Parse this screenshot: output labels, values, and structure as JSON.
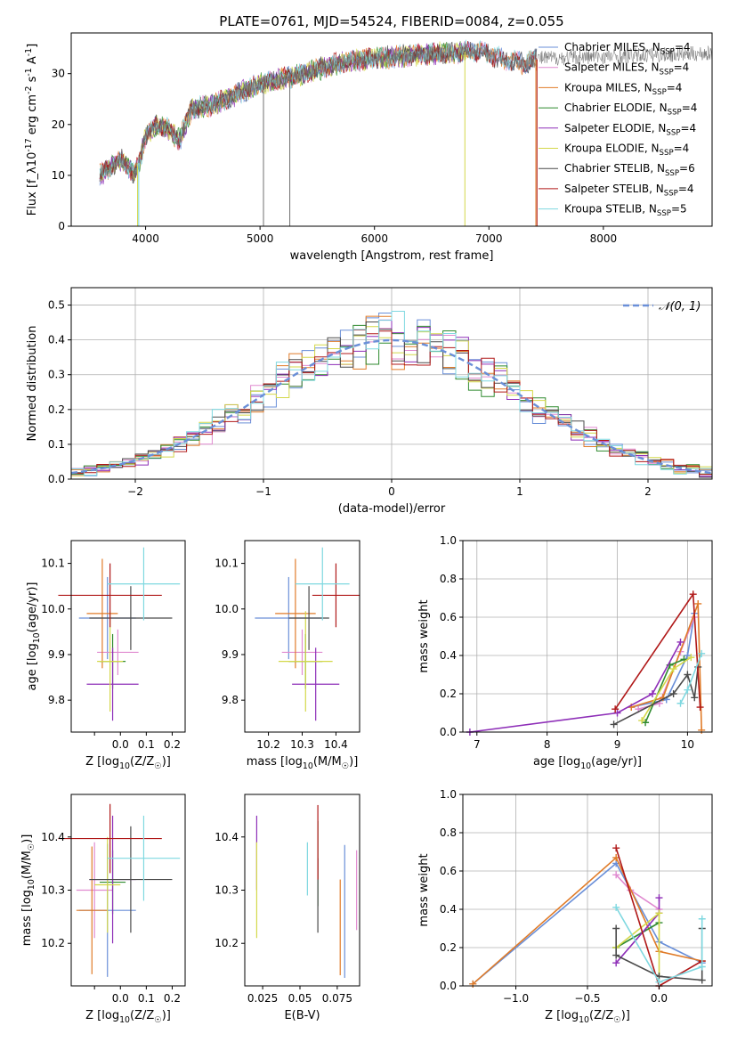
{
  "title": "PLATE=0761, MJD=54524, FIBERID=0084, z=0.055",
  "colors": {
    "Chabrier MILES": "#6a8fd8",
    "Salpeter MILES": "#e08ad0",
    "Kroupa MILES": "#e07b28",
    "Chabrier ELODIE": "#2f8a2f",
    "Salpeter ELODIE": "#8e2fb8",
    "Kroupa ELODIE": "#d4d84a",
    "Chabrier STELIB": "#4a4a4a",
    "Salpeter STELIB": "#b01818",
    "Kroupa STELIB": "#7fd8e0",
    "normal_curve": "#6a8fd8"
  },
  "chart_data": [
    {
      "id": "spectrum",
      "type": "line",
      "xlabel": "wavelength [Angstrom, rest frame]",
      "ylabel": "Flux [f_λ10^-17 erg cm^-2 s^-1 A^-1]",
      "xlim": [
        3350,
        8950
      ],
      "ylim": [
        0,
        38
      ],
      "xticks": [
        4000,
        5000,
        6000,
        7000,
        8000
      ],
      "yticks": [
        0,
        10,
        20,
        30
      ],
      "grid": false,
      "legend_position": "right",
      "series": [
        {
          "name": "Chabrier MILES, N_SSP=4"
        },
        {
          "name": "Salpeter MILES, N_SSP=4"
        },
        {
          "name": "Kroupa MILES, N_SSP=4"
        },
        {
          "name": "Chabrier ELODIE, N_SSP=4"
        },
        {
          "name": "Salpeter ELODIE, N_SSP=4"
        },
        {
          "name": "Kroupa ELODIE, N_SSP=4"
        },
        {
          "name": "Chabrier STELIB, N_SSP=6"
        },
        {
          "name": "Salpeter STELIB, N_SSP=4"
        },
        {
          "name": "Kroupa STELIB, N_SSP=5"
        }
      ],
      "envelope": {
        "x": [
          3600,
          3700,
          3800,
          3900,
          3950,
          4000,
          4100,
          4200,
          4300,
          4400,
          4600,
          4800,
          5000,
          5200,
          5400,
          5600,
          5800,
          6000,
          6300,
          6600,
          6900,
          7100,
          7300,
          7450
        ],
        "y": [
          10,
          12,
          13,
          10,
          13,
          18,
          20,
          19,
          17,
          23,
          24,
          26,
          28,
          29,
          30,
          31.5,
          32.5,
          33,
          33.5,
          34,
          34.5,
          33,
          32,
          33
        ]
      }
    },
    {
      "id": "residuals",
      "type": "step",
      "xlabel": "(data-model)/error",
      "ylabel": "Normed distribution",
      "xlim": [
        -2.5,
        2.5
      ],
      "ylim": [
        0,
        0.55
      ],
      "xticks": [
        -2,
        -1,
        0,
        1,
        2
      ],
      "yticks": [
        0.0,
        0.1,
        0.2,
        0.3,
        0.4,
        0.5
      ],
      "grid": true,
      "legend_position": "top-right",
      "normal_label": "N(0,1)",
      "bin_width": 0.1
    },
    {
      "id": "age_vs_Z",
      "type": "errorbar",
      "xlabel": "Z [log10(Z/Z☉)]",
      "ylabel": "age  [log10(age/yr)]",
      "xlim": [
        -0.19,
        0.25
      ],
      "ylim": [
        9.73,
        10.15
      ],
      "xticks": [
        -0.1,
        0.0,
        0.1,
        0.2
      ],
      "xtick_labels": [
        "",
        "0.0",
        "0.1",
        "0.2"
      ],
      "yticks": [
        9.8,
        9.9,
        10.0,
        10.1
      ],
      "points": [
        {
          "model": "Chabrier MILES",
          "x": -0.05,
          "xerr": 0.11,
          "y": 9.98,
          "yerr": 0.09
        },
        {
          "model": "Salpeter MILES",
          "x": -0.01,
          "xerr": 0.08,
          "y": 9.905,
          "yerr": 0.05
        },
        {
          "model": "Kroupa MILES",
          "x": -0.07,
          "xerr": 0.06,
          "y": 9.99,
          "yerr": 0.12
        },
        {
          "model": "Chabrier ELODIE",
          "x": -0.03,
          "xerr": 0.05,
          "y": 9.885,
          "yerr": 0.06
        },
        {
          "model": "Salpeter ELODIE",
          "x": -0.03,
          "xerr": 0.1,
          "y": 9.835,
          "yerr": 0.08
        },
        {
          "model": "Kroupa ELODIE",
          "x": -0.04,
          "xerr": 0.05,
          "y": 9.885,
          "yerr": 0.11
        },
        {
          "model": "Chabrier STELIB",
          "x": 0.04,
          "xerr": 0.16,
          "y": 9.98,
          "yerr": 0.07
        },
        {
          "model": "Salpeter STELIB",
          "x": -0.04,
          "xerr": 0.2,
          "y": 10.03,
          "yerr": 0.07
        },
        {
          "model": "Kroupa STELIB",
          "x": 0.09,
          "xerr": 0.14,
          "y": 10.055,
          "yerr": 0.08
        }
      ]
    },
    {
      "id": "age_vs_mass",
      "type": "errorbar",
      "xlabel": "mass [log10(M/M☉)]",
      "ylabel": "",
      "xlim": [
        10.13,
        10.47
      ],
      "ylim": [
        9.73,
        10.15
      ],
      "xticks": [
        10.2,
        10.3,
        10.4
      ],
      "yticks": [
        9.8,
        9.9,
        10.0,
        10.1
      ],
      "points": [
        {
          "model": "Chabrier MILES",
          "x": 10.26,
          "xerr": 0.1,
          "y": 9.98,
          "yerr": 0.09
        },
        {
          "model": "Salpeter MILES",
          "x": 10.3,
          "xerr": 0.06,
          "y": 9.905,
          "yerr": 0.05
        },
        {
          "model": "Kroupa MILES",
          "x": 10.28,
          "xerr": 0.06,
          "y": 9.99,
          "yerr": 0.12
        },
        {
          "model": "Chabrier ELODIE",
          "x": 10.31,
          "xerr": 0.05,
          "y": 9.885,
          "yerr": 0.06
        },
        {
          "model": "Salpeter ELODIE",
          "x": 10.34,
          "xerr": 0.07,
          "y": 9.835,
          "yerr": 0.08
        },
        {
          "model": "Kroupa ELODIE",
          "x": 10.31,
          "xerr": 0.08,
          "y": 9.885,
          "yerr": 0.11
        },
        {
          "model": "Chabrier STELIB",
          "x": 10.32,
          "xerr": 0.06,
          "y": 9.98,
          "yerr": 0.07
        },
        {
          "model": "Salpeter STELIB",
          "x": 10.4,
          "xerr": 0.07,
          "y": 10.03,
          "yerr": 0.07
        },
        {
          "model": "Kroupa STELIB",
          "x": 10.36,
          "xerr": 0.08,
          "y": 10.055,
          "yerr": 0.08
        }
      ]
    },
    {
      "id": "weight_vs_age",
      "type": "line",
      "xlabel": "age  [log10(age/yr)]",
      "ylabel": "mass weight",
      "xlim": [
        6.8,
        10.35
      ],
      "ylim": [
        0,
        1
      ],
      "xticks": [
        7,
        8,
        9,
        10
      ],
      "yticks": [
        0.0,
        0.2,
        0.4,
        0.6,
        0.8,
        1.0
      ],
      "grid": true,
      "series": [
        {
          "model": "Chabrier MILES",
          "x": [
            9.2,
            9.7,
            10.0,
            10.1
          ],
          "y": [
            0.13,
            0.17,
            0.4,
            0.62
          ]
        },
        {
          "model": "Salpeter MILES",
          "x": [
            9.3,
            9.6,
            9.9,
            10.1
          ],
          "y": [
            0.12,
            0.15,
            0.42,
            0.6
          ]
        },
        {
          "model": "Kroupa MILES",
          "x": [
            9.2,
            9.65,
            10.15,
            10.2
          ],
          "y": [
            0.13,
            0.18,
            0.67,
            0.01
          ]
        },
        {
          "model": "Chabrier ELODIE",
          "x": [
            9.4,
            9.75,
            9.95
          ],
          "y": [
            0.05,
            0.35,
            0.38
          ]
        },
        {
          "model": "Salpeter ELODIE",
          "x": [
            6.9,
            9.0,
            9.5,
            9.9
          ],
          "y": [
            0.0,
            0.1,
            0.2,
            0.47
          ]
        },
        {
          "model": "Kroupa ELODIE",
          "x": [
            9.35,
            9.8,
            10.05
          ],
          "y": [
            0.06,
            0.33,
            0.39
          ]
        },
        {
          "model": "Chabrier STELIB",
          "x": [
            8.95,
            9.8,
            10.0,
            10.1,
            10.15
          ],
          "y": [
            0.04,
            0.2,
            0.3,
            0.18,
            0.34
          ]
        },
        {
          "model": "Salpeter STELIB",
          "x": [
            8.97,
            10.08,
            10.18
          ],
          "y": [
            0.12,
            0.72,
            0.13
          ]
        },
        {
          "model": "Kroupa STELIB",
          "x": [
            9.9,
            10.0,
            10.2
          ],
          "y": [
            0.15,
            0.22,
            0.41
          ]
        }
      ]
    },
    {
      "id": "mass_vs_Z",
      "type": "errorbar",
      "xlabel": "Z [log10(Z/Z☉)]",
      "ylabel": "mass [log10(M/M☉)]",
      "xlim": [
        -0.19,
        0.25
      ],
      "ylim": [
        10.12,
        10.48
      ],
      "xticks": [
        -0.1,
        0.0,
        0.1,
        0.2
      ],
      "xtick_labels": [
        "",
        "0.0",
        "0.1",
        "0.2"
      ],
      "yticks": [
        10.2,
        10.3,
        10.4
      ],
      "points": [
        {
          "model": "Chabrier MILES",
          "x": -0.05,
          "xerr": 0.11,
          "y": 10.262,
          "yerr": 0.125
        },
        {
          "model": "Salpeter MILES",
          "x": -0.1,
          "xerr": 0.07,
          "y": 10.3,
          "yerr": 0.09
        },
        {
          "model": "Kroupa MILES",
          "x": -0.11,
          "xerr": 0.06,
          "y": 10.262,
          "yerr": 0.12
        },
        {
          "model": "Chabrier ELODIE",
          "x": -0.03,
          "xerr": 0.05,
          "y": 10.315,
          "yerr": 0.06
        },
        {
          "model": "Salpeter ELODIE",
          "x": -0.03,
          "xerr": 0.09,
          "y": 10.32,
          "yerr": 0.12
        },
        {
          "model": "Kroupa ELODIE",
          "x": -0.05,
          "xerr": 0.05,
          "y": 10.31,
          "yerr": 0.09
        },
        {
          "model": "Chabrier STELIB",
          "x": 0.04,
          "xerr": 0.16,
          "y": 10.32,
          "yerr": 0.1
        },
        {
          "model": "Salpeter STELIB",
          "x": -0.04,
          "xerr": 0.2,
          "y": 10.397,
          "yerr": 0.065
        },
        {
          "model": "Kroupa STELIB",
          "x": 0.09,
          "xerr": 0.14,
          "y": 10.36,
          "yerr": 0.08
        }
      ]
    },
    {
      "id": "mass_vs_EBV",
      "type": "errorbar",
      "xlabel": "E(B-V)",
      "ylabel": "",
      "xlim": [
        0.013,
        0.09
      ],
      "ylim": [
        10.12,
        10.48
      ],
      "xticks": [
        0.025,
        0.05,
        0.075
      ],
      "yticks": [
        10.2,
        10.3,
        10.4
      ],
      "points": [
        {
          "model": "Chabrier MILES",
          "x": 0.08,
          "xerr": 0.0,
          "y": 10.26,
          "yerr": 0.125
        },
        {
          "model": "Salpeter MILES",
          "x": 0.088,
          "xerr": 0.0,
          "y": 10.3,
          "yerr": 0.075
        },
        {
          "model": "Kroupa MILES",
          "x": 0.077,
          "xerr": 0.0,
          "y": 10.23,
          "yerr": 0.09
        },
        {
          "model": "Chabrier ELODIE",
          "x": 0.062,
          "xerr": 0.0,
          "y": 10.35,
          "yerr": 0.08
        },
        {
          "model": "Salpeter ELODIE",
          "x": 0.021,
          "xerr": 0.0,
          "y": 10.37,
          "yerr": 0.07
        },
        {
          "model": "Kroupa ELODIE",
          "x": 0.021,
          "xerr": 0.0,
          "y": 10.3,
          "yerr": 0.09
        },
        {
          "model": "Chabrier STELIB",
          "x": 0.062,
          "xerr": 0.0,
          "y": 10.29,
          "yerr": 0.07
        },
        {
          "model": "Salpeter STELIB",
          "x": 0.062,
          "xerr": 0.0,
          "y": 10.39,
          "yerr": 0.07
        },
        {
          "model": "Kroupa STELIB",
          "x": 0.055,
          "xerr": 0.0,
          "y": 10.34,
          "yerr": 0.05
        }
      ]
    },
    {
      "id": "weight_vs_Z",
      "type": "line",
      "xlabel": "Z [log10(Z/Z☉)]",
      "ylabel": "mass weight",
      "xlim": [
        -1.37,
        0.37
      ],
      "ylim": [
        0,
        1
      ],
      "xticks": [
        -1.0,
        -0.5,
        0.0
      ],
      "yticks": [
        0.0,
        0.2,
        0.4,
        0.6,
        0.8,
        1.0
      ],
      "grid": true,
      "series": [
        {
          "model": "Chabrier MILES",
          "x": [
            -1.3,
            -0.3,
            0.0,
            0.3
          ],
          "y": [
            0.01,
            0.64,
            0.23,
            0.12
          ]
        },
        {
          "model": "Salpeter MILES",
          "x": [
            -0.3,
            -0.2,
            0.0
          ],
          "y": [
            0.58,
            0.5,
            0.4
          ]
        },
        {
          "model": "Kroupa MILES",
          "x": [
            -1.3,
            -0.3,
            0.0,
            0.3
          ],
          "y": [
            0.01,
            0.67,
            0.18,
            0.13
          ]
        },
        {
          "model": "Chabrier ELODIE",
          "x": [
            -0.3,
            0.0
          ],
          "y": [
            0.2,
            0.33
          ]
        },
        {
          "model": "Salpeter ELODIE",
          "x": [
            -0.3,
            0.0,
            0.0
          ],
          "y": [
            0.12,
            0.38,
            0.46
          ]
        },
        {
          "model": "Kroupa ELODIE",
          "x": [
            -0.3,
            0.0,
            0.0
          ],
          "y": [
            0.2,
            0.38,
            0.05
          ]
        },
        {
          "model": "Chabrier STELIB",
          "x": [
            -0.3,
            -0.3,
            0.0,
            0.3,
            0.3
          ],
          "y": [
            0.3,
            0.16,
            0.05,
            0.03,
            0.3
          ]
        },
        {
          "model": "Salpeter STELIB",
          "x": [
            -0.3,
            0.0,
            0.3
          ],
          "y": [
            0.72,
            0.0,
            0.13
          ]
        },
        {
          "model": "Kroupa STELIB",
          "x": [
            -0.3,
            0.0,
            0.3,
            0.3
          ],
          "y": [
            0.41,
            0.02,
            0.1,
            0.35
          ]
        }
      ]
    }
  ]
}
